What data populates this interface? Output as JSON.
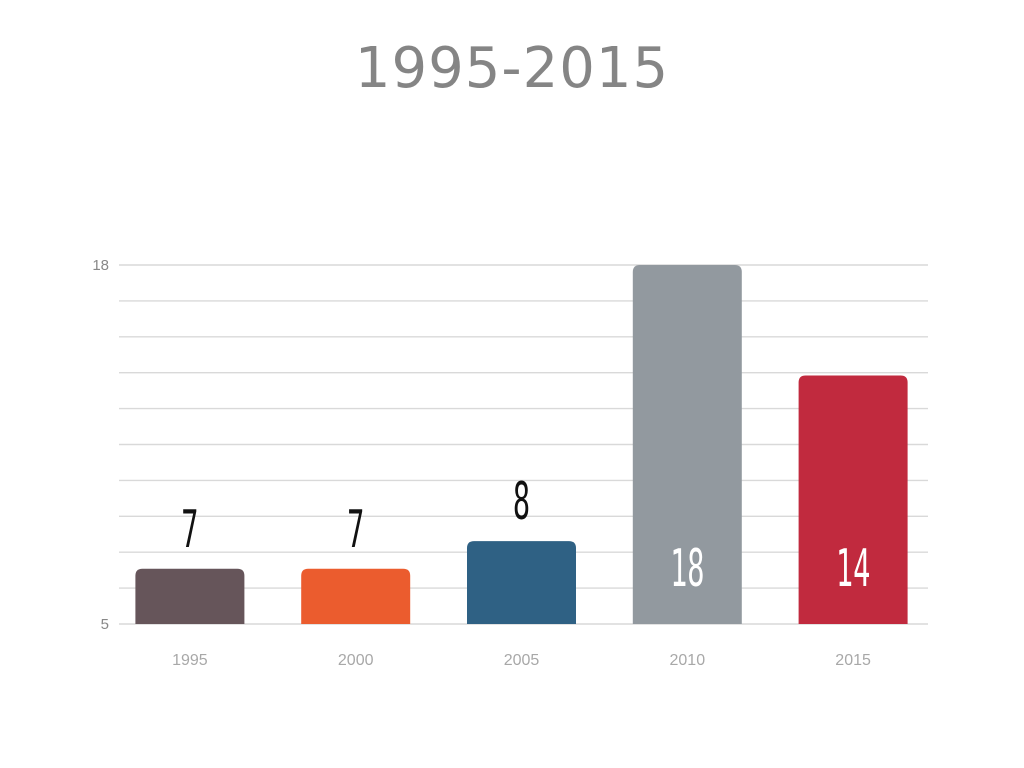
{
  "chart_data": {
    "type": "bar",
    "title": "1995-2015",
    "categories": [
      "1995",
      "2000",
      "2005",
      "2010",
      "2015"
    ],
    "values": [
      7,
      7,
      8,
      18,
      14
    ],
    "colors": [
      "#66555a",
      "#eb5c2e",
      "#2f6184",
      "#92999f",
      "#c12a3e"
    ],
    "label_inside": [
      false,
      false,
      false,
      true,
      true
    ],
    "ylim": [
      5,
      18
    ],
    "yticks": [
      "5",
      "18"
    ],
    "xlabel": "",
    "ylabel": "",
    "grid": true,
    "legend": "none"
  }
}
